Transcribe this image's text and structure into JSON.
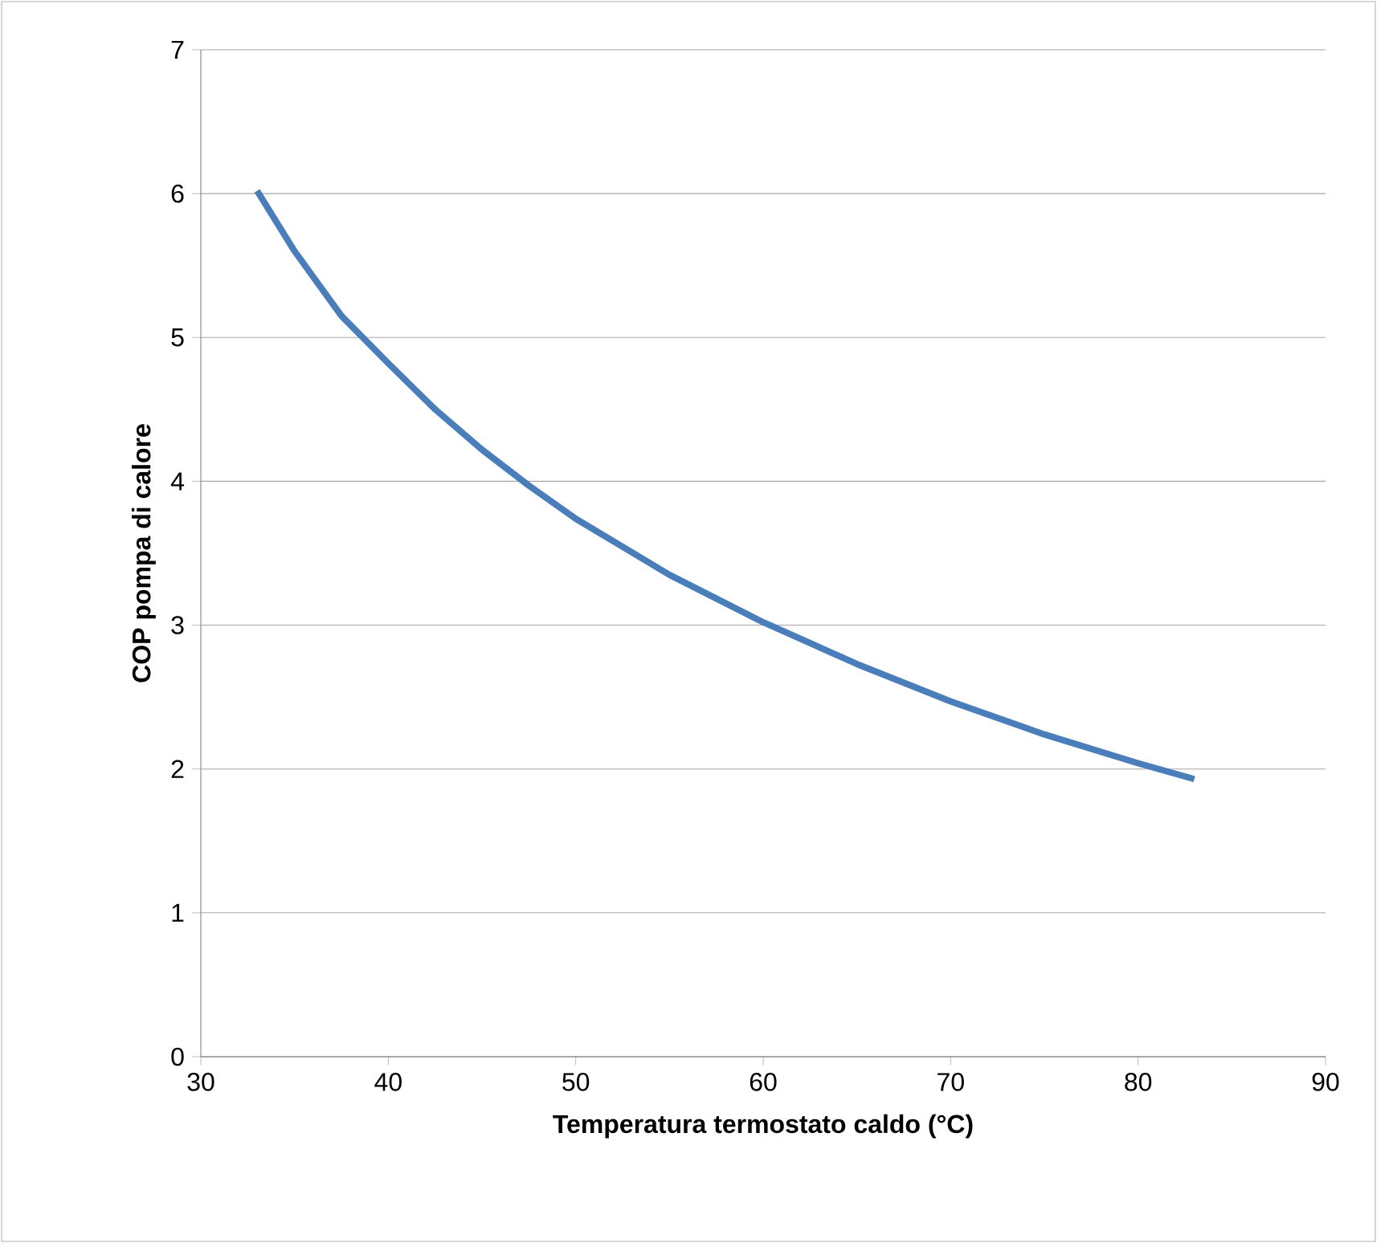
{
  "chart_data": {
    "type": "line",
    "xlabel": "Temperatura termostato caldo  (°C)",
    "ylabel": "COP pompa di calore",
    "x": [
      33,
      35,
      37.5,
      40,
      42.5,
      45,
      47.5,
      50,
      55,
      60,
      65,
      70,
      75,
      80,
      83
    ],
    "values": [
      6.02,
      5.6,
      5.15,
      4.82,
      4.5,
      4.22,
      3.97,
      3.74,
      3.35,
      3.02,
      2.73,
      2.47,
      2.24,
      2.04,
      1.93
    ],
    "color": "#4a7ebb",
    "xlim": [
      30,
      90
    ],
    "ylim": [
      0,
      7
    ],
    "xticks": [
      30,
      40,
      50,
      60,
      70,
      80,
      90
    ],
    "yticks": [
      0,
      1,
      2,
      3,
      4,
      5,
      6,
      7
    ],
    "grid": "y",
    "marker": "none",
    "line_style": "solid"
  }
}
